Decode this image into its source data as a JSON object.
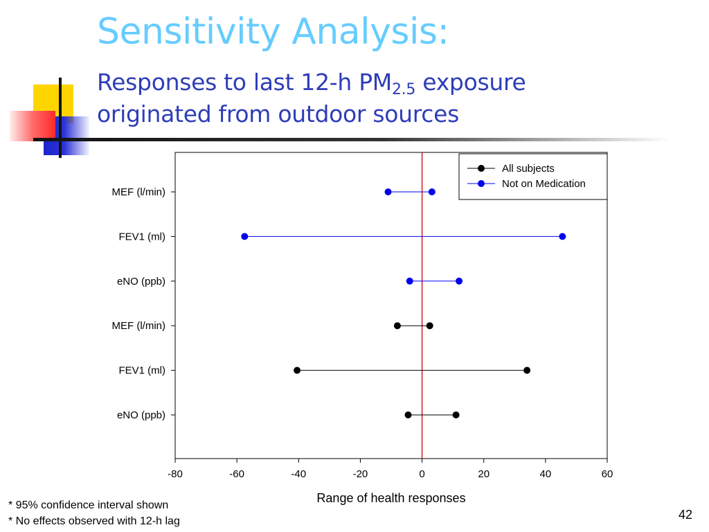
{
  "slide": {
    "title": "Sensitivity Analysis:",
    "subtitle_line1_before": "Responses to last 12-h PM",
    "subtitle_sub": "2.5",
    "subtitle_line1_after": " exposure",
    "subtitle_line2": "originated from outdoor sources",
    "notes": [
      "* 95% confidence interval shown",
      "* No effects observed with 12-h lag"
    ],
    "slide_number": "42"
  },
  "chart_data": {
    "type": "interval",
    "xlabel": "Range of health responses",
    "xlim": [
      -80,
      60
    ],
    "x_ticks": [
      "-80",
      "-60",
      "-40",
      "-20",
      "0",
      "20",
      "40",
      "60"
    ],
    "reference_line_x": 0,
    "reference_line_color": "#cc0000",
    "categories": [
      "eNO (ppb)",
      "FEV1 (ml)",
      "MEF (l/min)",
      "eNO (ppb)",
      "FEV1 (ml)",
      "MEF (l/min)"
    ],
    "series": [
      {
        "name": "All subjects",
        "color": "#000000",
        "intervals": [
          {
            "category_index": 0,
            "low": -4.5,
            "high": 11
          },
          {
            "category_index": 1,
            "low": -40.5,
            "high": 34
          },
          {
            "category_index": 2,
            "low": -8,
            "high": 2.5
          }
        ]
      },
      {
        "name": "Not on Medication",
        "color": "#0000ee",
        "intervals": [
          {
            "category_index": 3,
            "low": -4,
            "high": 12
          },
          {
            "category_index": 4,
            "low": -57.5,
            "high": 45.5
          },
          {
            "category_index": 5,
            "low": -11,
            "high": 3.2
          }
        ]
      }
    ],
    "legend_position": "top-right",
    "grid": false
  }
}
